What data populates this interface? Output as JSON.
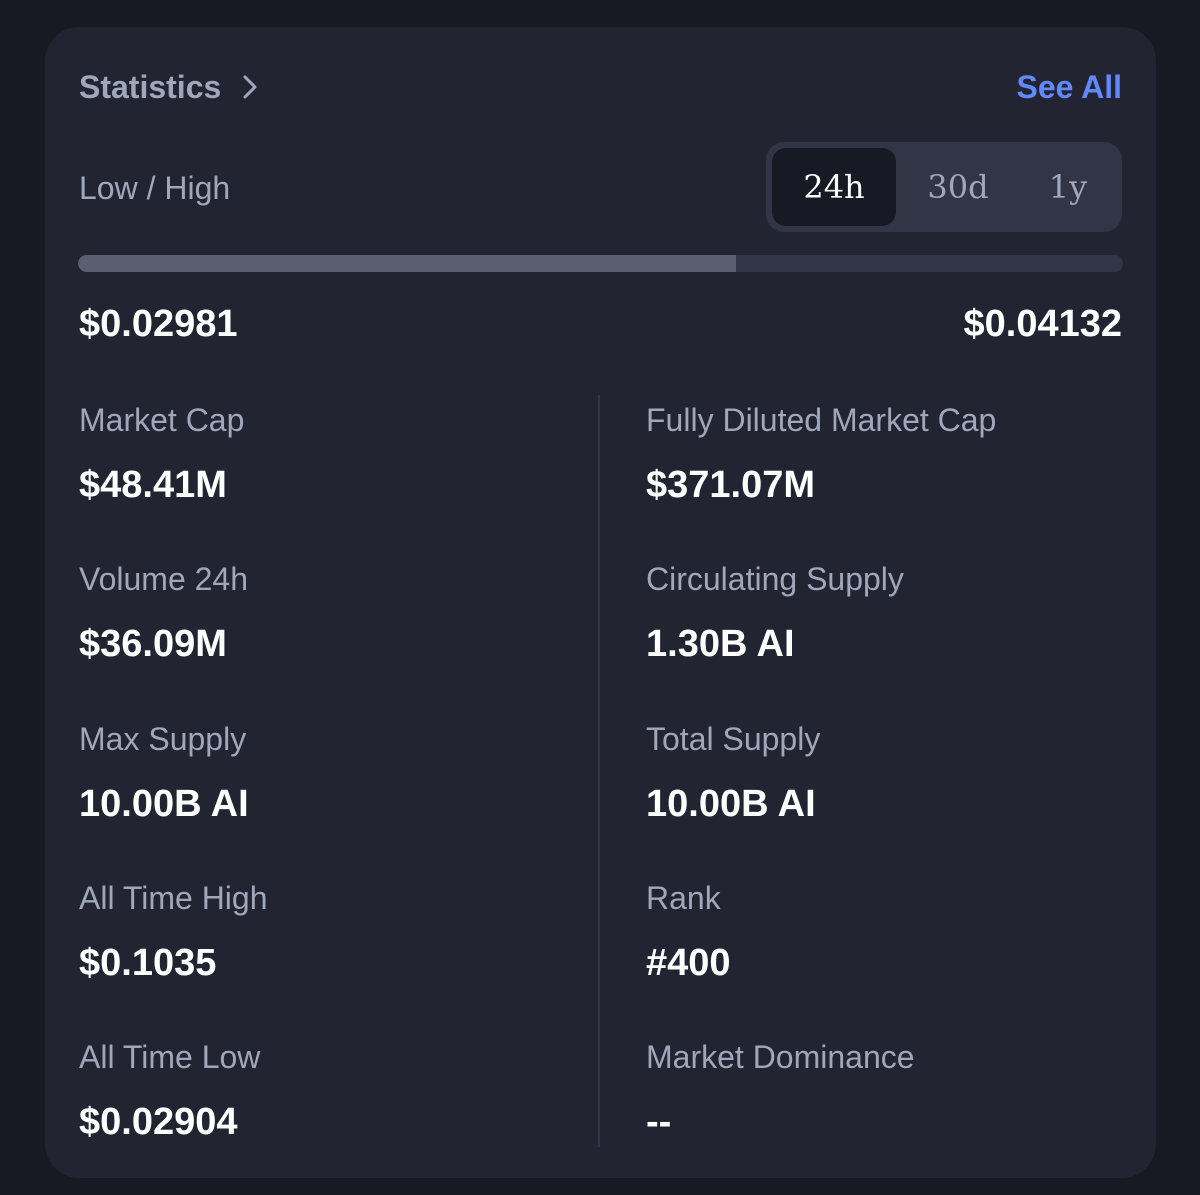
{
  "header": {
    "title": "Statistics",
    "see_all_label": "See All"
  },
  "low_high": {
    "label": "Low / High",
    "tabs": [
      {
        "label": "24h",
        "active": true
      },
      {
        "label": "30d",
        "active": false
      },
      {
        "label": "1y",
        "active": false
      }
    ],
    "low": "$0.02981",
    "high": "$0.04132",
    "bar_fill_fraction": 0.63
  },
  "stats": {
    "left": [
      {
        "label": "Market Cap",
        "value": "$48.41M"
      },
      {
        "label": "Volume 24h",
        "value": "$36.09M"
      },
      {
        "label": "Max Supply",
        "value": "10.00B AI"
      },
      {
        "label": "All Time High",
        "value": "$0.1035"
      },
      {
        "label": "All Time Low",
        "value": "$0.02904"
      }
    ],
    "right": [
      {
        "label": "Fully Diluted Market Cap",
        "value": "$371.07M"
      },
      {
        "label": "Circulating Supply",
        "value": "1.30B AI"
      },
      {
        "label": "Total Supply",
        "value": "10.00B AI"
      },
      {
        "label": "Rank",
        "value": "#400"
      },
      {
        "label": "Market Dominance",
        "value": "--"
      }
    ]
  },
  "colors": {
    "page_background": "#171923",
    "card_background": "#222531",
    "accent_link": "#6188ff",
    "muted_text": "#a1a7bb",
    "primary_text": "#ffffff"
  },
  "icons": {
    "statistics_link": "chevron-right-icon"
  }
}
